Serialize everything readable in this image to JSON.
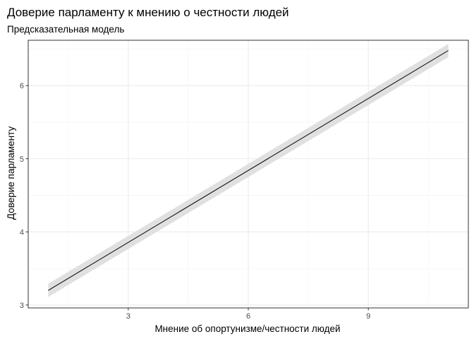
{
  "chart_data": {
    "type": "line",
    "title": "Доверие парламенту к мнению о честности людей",
    "subtitle": "Предсказательная модель",
    "xlabel": "Мнение об опортунизме/честности людей",
    "ylabel": "Доверие парламенту",
    "xlim": [
      0.5,
      11.5
    ],
    "ylim": [
      2.96,
      6.62
    ],
    "x_ticks": [
      3,
      6,
      9
    ],
    "y_ticks": [
      3,
      4,
      5,
      6
    ],
    "x_minor": [
      1.5,
      4.5,
      7.5,
      10.5
    ],
    "y_minor": [
      3.5,
      4.5,
      5.5,
      6.5
    ],
    "grid": true,
    "series": [
      {
        "x": [
          1,
          11
        ],
        "y": [
          3.2,
          6.48
        ],
        "ci_lower": [
          3.11,
          6.39
        ],
        "ci_upper": [
          3.29,
          6.57
        ],
        "color": "#000000",
        "ribbon_color": "#e0e0e0"
      }
    ]
  }
}
